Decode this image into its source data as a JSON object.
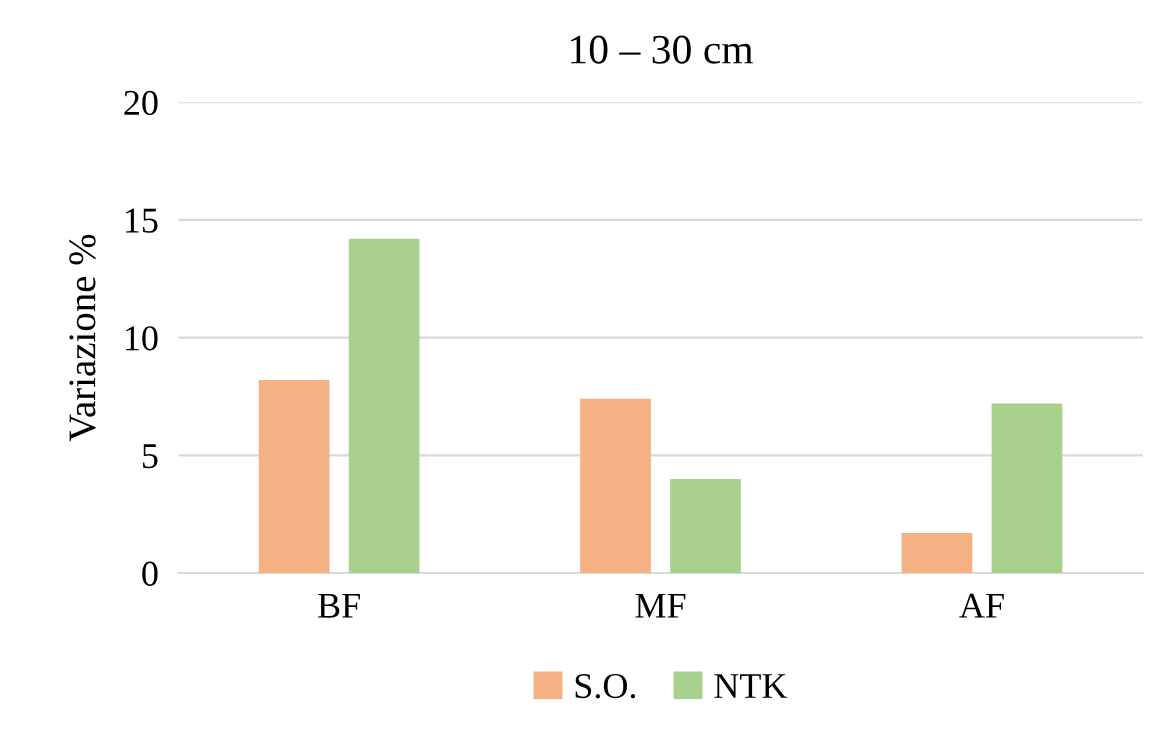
{
  "chart_data": {
    "type": "bar",
    "title": "10 – 30 cm",
    "ylabel": "Variazione %",
    "categories": [
      "BF",
      "MF",
      "AF"
    ],
    "series": [
      {
        "name": "S.O.",
        "color": "#f4b183",
        "values": [
          8.2,
          7.4,
          1.7
        ]
      },
      {
        "name": "NTK",
        "color": "#a9d18e",
        "values": [
          14.2,
          4.0,
          7.2
        ]
      }
    ],
    "ylim": [
      0,
      20
    ],
    "yticks": [
      0,
      5,
      10,
      15,
      20
    ],
    "grid": "y",
    "legend": "bottom"
  }
}
